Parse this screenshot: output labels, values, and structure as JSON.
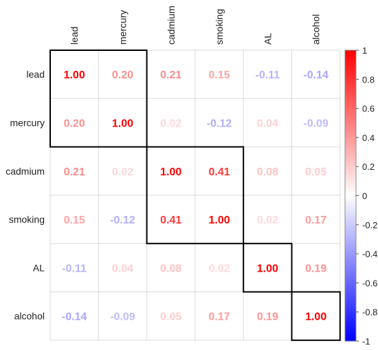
{
  "chart_data": {
    "type": "heatmap",
    "variables": [
      "lead",
      "mercury",
      "cadmium",
      "smoking",
      "AL",
      "alcohol"
    ],
    "matrix": [
      [
        1.0,
        0.2,
        0.21,
        0.15,
        -0.11,
        -0.14
      ],
      [
        0.2,
        1.0,
        0.02,
        -0.12,
        0.04,
        -0.09
      ],
      [
        0.21,
        0.02,
        1.0,
        0.41,
        0.08,
        0.05
      ],
      [
        0.15,
        -0.12,
        0.41,
        1.0,
        0.02,
        0.17
      ],
      [
        -0.11,
        0.04,
        0.08,
        0.02,
        1.0,
        0.19
      ],
      [
        -0.14,
        -0.09,
        0.05,
        0.17,
        0.19,
        1.0
      ]
    ],
    "clusters": [
      [
        0,
        1
      ],
      [
        2,
        3
      ],
      [
        4
      ],
      [
        5
      ]
    ],
    "colorbar": {
      "range": [
        -1,
        1
      ],
      "ticks": [
        1,
        0.8,
        0.6,
        0.4,
        0.2,
        0,
        -0.2,
        -0.4,
        -0.6,
        -0.8,
        -1
      ],
      "tick_labels": [
        "1",
        "0.8",
        "0.6",
        "0.4",
        "0.2",
        "0",
        "-0.2",
        "-0.4",
        "-0.6",
        "-0.8",
        "-1"
      ],
      "colors": {
        "positive": "#FF0000",
        "neutral": "#FFFFFF",
        "negative": "#0000FF"
      }
    },
    "grid": true,
    "value_labels": true,
    "value_format": "2 decimals"
  }
}
